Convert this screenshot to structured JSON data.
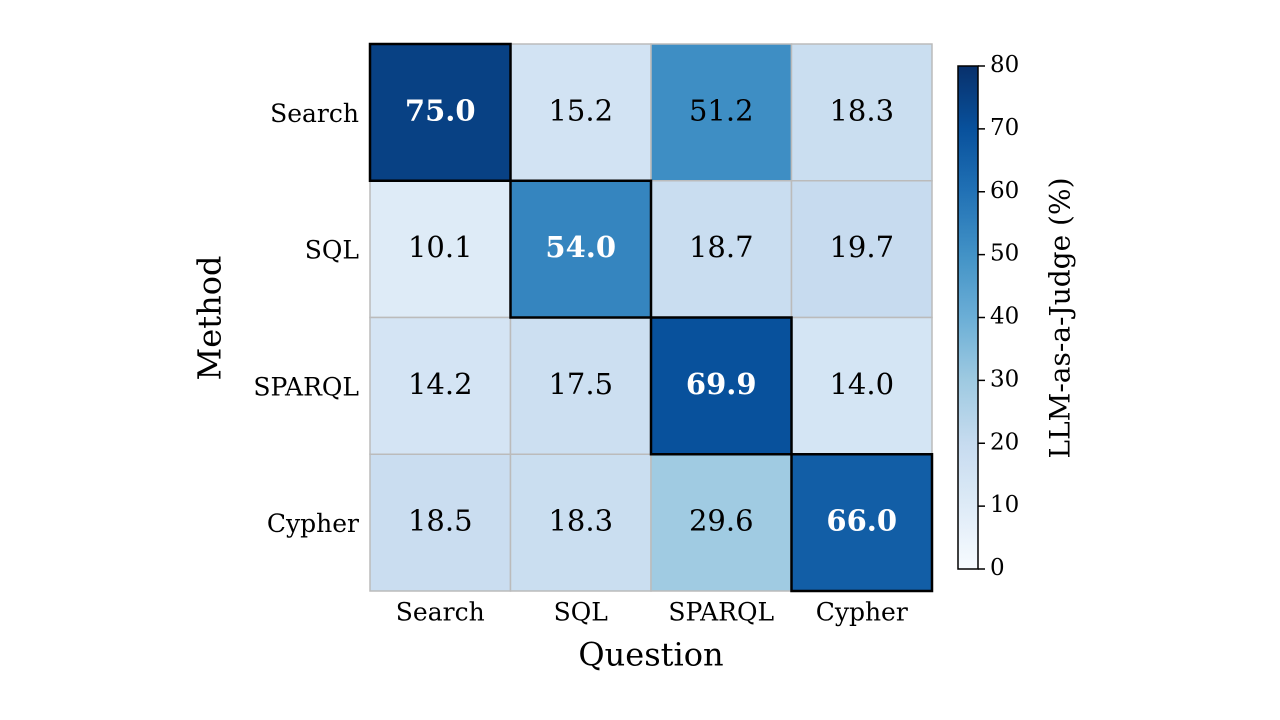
{
  "chart_data": {
    "type": "heatmap",
    "xlabel": "Question",
    "ylabel": "Method",
    "x_categories": [
      "Search",
      "SQL",
      "SPARQL",
      "Cypher"
    ],
    "y_categories": [
      "Search",
      "SQL",
      "SPARQL",
      "Cypher"
    ],
    "values": [
      [
        75.0,
        15.2,
        51.2,
        18.3
      ],
      [
        10.1,
        54.0,
        18.7,
        19.7
      ],
      [
        14.2,
        17.5,
        69.9,
        14.0
      ],
      [
        18.5,
        18.3,
        29.6,
        66.0
      ]
    ],
    "value_labels": [
      [
        "75.0",
        "15.2",
        "51.2",
        "18.3"
      ],
      [
        "10.1",
        "54.0",
        "18.7",
        "19.7"
      ],
      [
        "14.2",
        "17.5",
        "69.9",
        "14.0"
      ],
      [
        "18.5",
        "18.3",
        "29.6",
        "66.0"
      ]
    ],
    "colormap": [
      "#f7fbff",
      "#deebf7",
      "#c6dbef",
      "#9ecae1",
      "#6baed6",
      "#4292c6",
      "#2171b5",
      "#08519c",
      "#08306b"
    ],
    "colorbar_label": "LLM-as-a-Judge (%)",
    "zlim": [
      0,
      80
    ],
    "zticks": [
      0,
      10,
      20,
      30,
      40,
      50,
      60,
      70,
      80
    ]
  }
}
